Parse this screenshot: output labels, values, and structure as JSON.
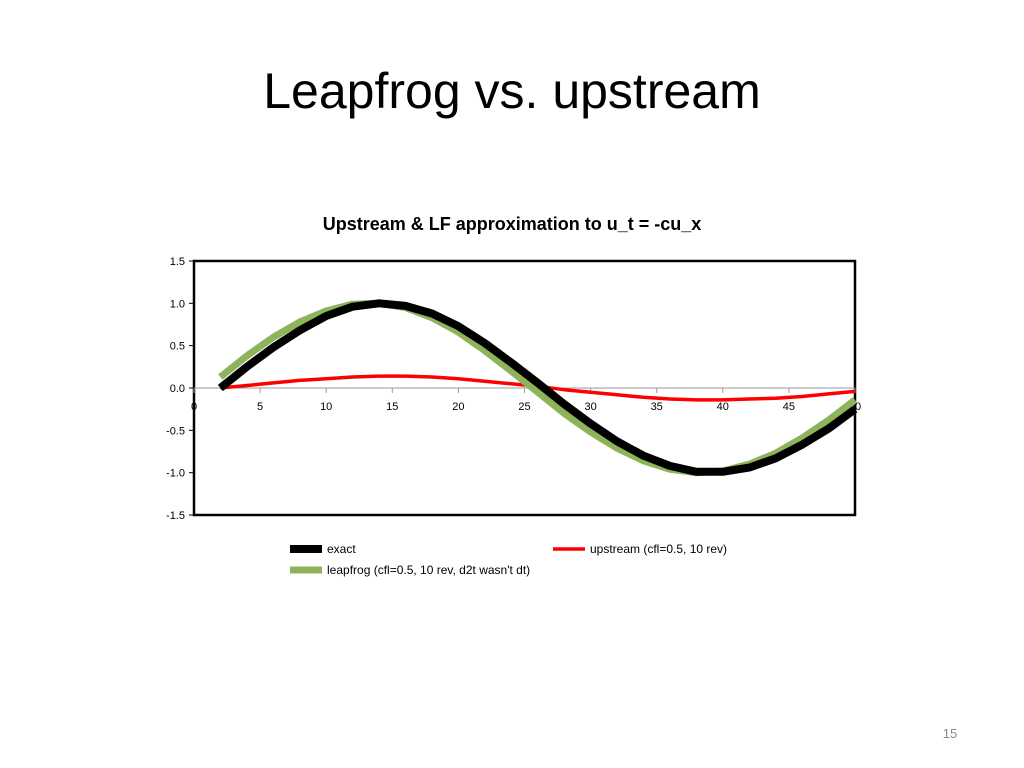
{
  "slide": {
    "title": "Leapfrog vs. upstream",
    "page_number": "15"
  },
  "chart_data": {
    "type": "line",
    "title": "Upstream & LF approximation to u_t = -cu_x",
    "xlabel": "",
    "ylabel": "",
    "xlim": [
      0,
      50
    ],
    "ylim": [
      -1.5,
      1.5
    ],
    "x_ticks": [
      "0",
      "5",
      "10",
      "15",
      "20",
      "25",
      "30",
      "35",
      "40",
      "45",
      "50"
    ],
    "y_ticks": [
      "1.5",
      "1.0",
      "0.5",
      "0.0",
      "-0.5",
      "-1.0",
      "-1.5"
    ],
    "grid": false,
    "legend_position": "bottom",
    "x": [
      2,
      4,
      6,
      8,
      10,
      12,
      14,
      16,
      18,
      20,
      22,
      24,
      26,
      28,
      30,
      32,
      34,
      36,
      38,
      40,
      42,
      44,
      46,
      48,
      50
    ],
    "series": [
      {
        "name": "exact",
        "color": "#000000",
        "values": [
          0.0,
          0.25,
          0.48,
          0.68,
          0.85,
          0.96,
          1.0,
          0.97,
          0.88,
          0.73,
          0.53,
          0.3,
          0.06,
          -0.19,
          -0.42,
          -0.63,
          -0.8,
          -0.92,
          -0.99,
          -0.99,
          -0.94,
          -0.83,
          -0.67,
          -0.48,
          -0.25
        ]
      },
      {
        "name": "upstream (cfl=0.5, 10 rev)",
        "color": "#ff0000",
        "values": [
          0.0,
          0.03,
          0.06,
          0.09,
          0.11,
          0.13,
          0.14,
          0.14,
          0.13,
          0.11,
          0.08,
          0.05,
          0.02,
          -0.02,
          -0.05,
          -0.08,
          -0.11,
          -0.13,
          -0.14,
          -0.14,
          -0.13,
          -0.12,
          -0.1,
          -0.07,
          -0.04
        ]
      },
      {
        "name": "leapfrog (cfl=0.5, 10 rev, d2t wasn't dt)",
        "color": "#8db35b",
        "values": [
          0.13,
          0.38,
          0.6,
          0.78,
          0.91,
          0.99,
          1.0,
          0.95,
          0.83,
          0.66,
          0.44,
          0.2,
          -0.05,
          -0.3,
          -0.52,
          -0.71,
          -0.86,
          -0.96,
          -1.0,
          -0.98,
          -0.9,
          -0.77,
          -0.59,
          -0.38,
          -0.14
        ]
      }
    ]
  }
}
